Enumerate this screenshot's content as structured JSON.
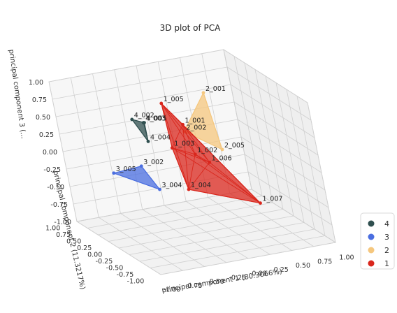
{
  "chart_data": {
    "type": "scatter",
    "projection": "3d",
    "title": "3D plot of PCA",
    "xlabel": "principal component 1 (80.3066%)",
    "ylabel": "principal component 2 (11.3217%)",
    "zlabel": "principal component 3 (...",
    "x_ticks": [
      "-1.00",
      "-0.75",
      "-0.50",
      "-0.25",
      "0.00",
      "0.25",
      "0.50",
      "0.75",
      "1.00"
    ],
    "y_ticks": [
      "1.00",
      "0.75",
      "0.50",
      "0.25",
      "0.00",
      "-0.25",
      "-0.50",
      "-0.75",
      "-1.00"
    ],
    "z_ticks": [
      "1.00",
      "0.75",
      "0.50",
      "0.25",
      "0.00",
      "-0.25",
      "-0.50",
      "-0.75",
      "-1.00"
    ],
    "xlim": [
      -1,
      1
    ],
    "ylim": [
      -1,
      1
    ],
    "zlim": [
      -1,
      1
    ],
    "grid": true,
    "legend_position": "right",
    "series": [
      {
        "name": "4",
        "color": "#2f4f4f",
        "points": [
          {
            "label": "4_002",
            "x": -0.45,
            "y": 0.3,
            "z": 0.6
          },
          {
            "label": "4_003",
            "x": -0.35,
            "y": 0.25,
            "z": 0.55
          },
          {
            "label": "4_004",
            "x": -0.4,
            "y": 0.1,
            "z": 0.35
          },
          {
            "label": "4_005",
            "x": -0.3,
            "y": 0.35,
            "z": 0.5
          }
        ]
      },
      {
        "name": "3",
        "color": "#4a6ee0",
        "points": [
          {
            "label": "3_005",
            "x": -0.85,
            "y": 0.1,
            "z": 0.0
          },
          {
            "label": "3_002",
            "x": -0.55,
            "y": 0.05,
            "z": 0.05
          },
          {
            "label": "3_004",
            "x": -0.5,
            "y": -0.2,
            "z": -0.2
          }
        ]
      },
      {
        "name": "2",
        "color": "#f5c77e",
        "points": [
          {
            "label": "2_001",
            "x": 0.6,
            "y": 0.8,
            "z": 0.55
          },
          {
            "label": "2_005",
            "x": 0.4,
            "y": 0.1,
            "z": 0.05
          },
          {
            "label": "2_002",
            "x": 0.1,
            "y": 0.3,
            "z": 0.3
          }
        ]
      },
      {
        "name": "1",
        "color": "#d9261c",
        "points": [
          {
            "label": "1_005",
            "x": -0.05,
            "y": 0.4,
            "z": 0.7
          },
          {
            "label": "1_007",
            "x": 0.5,
            "y": -0.4,
            "z": -0.55
          },
          {
            "label": "1_001",
            "x": 0.1,
            "y": 0.3,
            "z": 0.4
          },
          {
            "label": "1_004",
            "x": -0.2,
            "y": -0.25,
            "z": -0.25
          },
          {
            "label": "1_002",
            "x": 0.05,
            "y": 0.0,
            "z": 0.1
          },
          {
            "label": "1_003",
            "x": -0.15,
            "y": 0.1,
            "z": 0.2
          },
          {
            "label": "1_006",
            "x": 0.15,
            "y": -0.1,
            "z": 0.0
          }
        ]
      }
    ]
  }
}
